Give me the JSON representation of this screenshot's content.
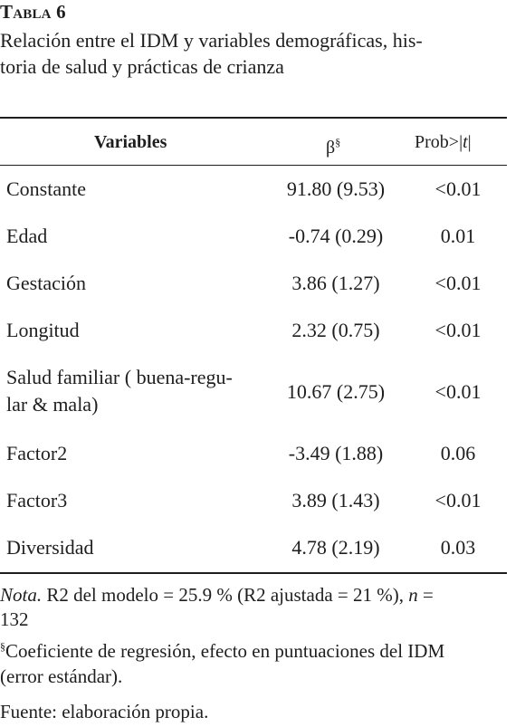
{
  "table_number": "Tabla 6",
  "caption_line1": "Relación entre el IDM y variables demográficas, his-",
  "caption_line2": "toria de salud y prácticas de crianza",
  "headers": {
    "variables": "Variables",
    "beta": "β",
    "beta_mark": "§",
    "prob_prefix": "Prob>|",
    "prob_t": "t",
    "prob_suffix": "|"
  },
  "rows": [
    {
      "variable": "Constante",
      "beta": "91.80 (9.53)",
      "prob": "<0.01"
    },
    {
      "variable": "Edad",
      "beta": "-0.74 (0.29)",
      "prob": "0.01"
    },
    {
      "variable": "Gestación",
      "beta": "3.86 (1.27)",
      "prob": "<0.01"
    },
    {
      "variable": "Longitud",
      "beta": "2.32 (0.75)",
      "prob": "<0.01"
    },
    {
      "variable_line1": "Salud familiar ( buena-regu-",
      "variable_line2": "lar & mala)",
      "beta": "10.67 (2.75)",
      "prob": "<0.01"
    },
    {
      "variable": "Factor2",
      "beta": "-3.49 (1.88)",
      "prob": "0.06"
    },
    {
      "variable": "Factor3",
      "beta": "3.89 (1.43)",
      "prob": "<0.01"
    },
    {
      "variable": "Diversidad",
      "beta": "4.78 (2.19)",
      "prob": "0.03"
    }
  ],
  "note": {
    "label": "Nota.",
    "text_a": " R2 del modelo = 25.9 % (R2 ajustada = 21 %), ",
    "n": "n",
    "text_b": " =",
    "line2": "132"
  },
  "footnote": {
    "mark": "§",
    "line1": "Coeficiente de regresión, efecto en puntuaciones del IDM",
    "line2": "(error estándar)."
  },
  "source": "Fuente: elaboración propia."
}
